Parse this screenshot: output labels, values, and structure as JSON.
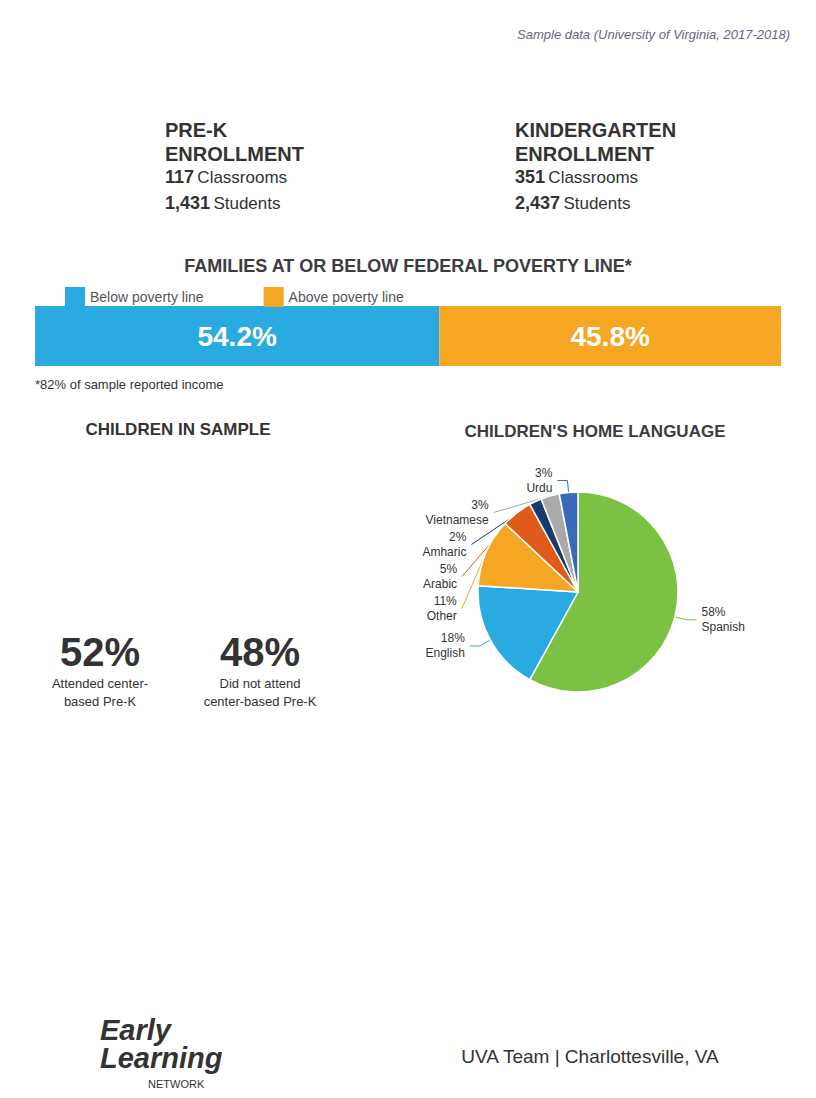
{
  "chart_data": [
    {
      "type": "bar",
      "orientation": "horizontal",
      "stacked": true,
      "title": "FAMILIES AT OR BELOW FEDERAL POVERTY LINE*",
      "categories": [
        null
      ],
      "series": [
        {
          "name": "Below poverty line",
          "color": "#29abe2",
          "values": [
            54.2
          ],
          "value_labels": [
            "54.2%"
          ]
        },
        {
          "name": "Above poverty line",
          "color": "#f5a623",
          "values": [
            45.8
          ],
          "value_labels": [
            "45.8%"
          ]
        }
      ],
      "xlim": [
        0,
        100
      ],
      "data_labels": true,
      "legend": "top",
      "tick_labels": false,
      "grid": false,
      "annotations": [
        "*82% of sample reported income"
      ]
    },
    {
      "type": "pie",
      "title": "CHILDREN'S HOME LANGUAGE",
      "categories": [
        "Spanish",
        "English",
        "Other",
        "Arabic",
        "Amharic",
        "Vietnamese",
        "Urdu"
      ],
      "values": [
        58,
        18,
        11,
        5,
        2,
        3,
        3
      ],
      "value_labels": [
        "58%",
        "18%",
        "11%",
        "5%",
        "2%",
        "3%",
        "3%"
      ],
      "colors": [
        "#7bc144",
        "#29abe2",
        "#f5a623",
        "#e05a1a",
        "#1a3a6b",
        "#aaaaaa",
        "#3a6bbb"
      ],
      "data_labels": true
    },
    {
      "type": "text",
      "annotations": [
        "Sample data (University of Virginia, 2017-2018)",
        "PRE-K\nENROLLMENT",
        "117",
        "Classrooms",
        "1,431",
        "Students",
        "KINDERGARTEN\nENROLLMENT",
        "351",
        "Classrooms",
        "2,437",
        "Students",
        "CHILDREN IN SAMPLE",
        "52%",
        "Attended center-\nbased Pre-K",
        "48%",
        "Did not attend\ncenter-based Pre-K",
        "Early",
        "Learning",
        "NETWORK",
        "UVA Team | Charlottesville, VA"
      ]
    }
  ]
}
